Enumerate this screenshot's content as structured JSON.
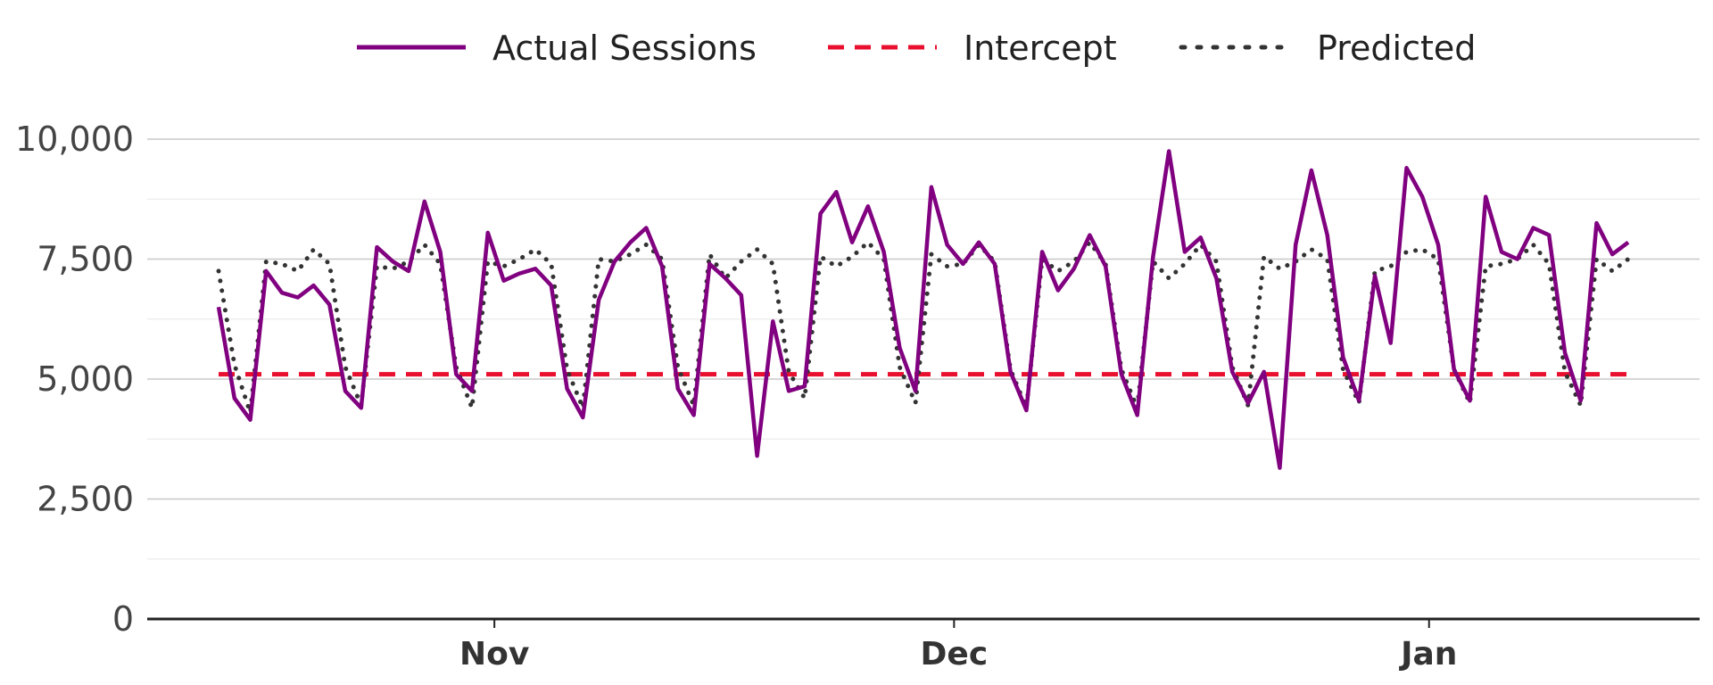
{
  "chart_data": {
    "type": "line",
    "x_start": "2023-10-14",
    "x_end": "2024-01-14",
    "ylim": [
      0,
      10000
    ],
    "y_ticks": [
      0,
      2500,
      5000,
      7500,
      10000
    ],
    "y_tick_labels": [
      "0",
      "2,500",
      "5,000",
      "7,500",
      "10,000"
    ],
    "x_ticks": [
      {
        "date": "2023-11-01",
        "label": "Nov"
      },
      {
        "date": "2023-12-01",
        "label": "Dec"
      },
      {
        "date": "2024-01-01",
        "label": "Jan"
      }
    ],
    "grid": true,
    "legend_position": "top",
    "series": [
      {
        "name": "Actual Sessions",
        "style": "solid",
        "color": "#800080",
        "values": [
          6500,
          4600,
          4150,
          7250,
          6800,
          6700,
          6950,
          6550,
          4750,
          4400,
          7750,
          7450,
          7250,
          8700,
          7650,
          5100,
          4750,
          8050,
          7050,
          7200,
          7300,
          6950,
          4800,
          4200,
          6650,
          7450,
          7850,
          8150,
          7350,
          4800,
          4250,
          7400,
          7100,
          6750,
          3400,
          6200,
          4750,
          4850,
          8450,
          8900,
          7850,
          8600,
          7650,
          5650,
          4750,
          9000,
          7800,
          7400,
          7850,
          7400,
          5150,
          4350,
          7650,
          6850,
          7300,
          8000,
          7350,
          5100,
          4250,
          7550,
          9750,
          7650,
          7950,
          7100,
          5150,
          4500,
          5150,
          3150,
          7800,
          9350,
          8000,
          5450,
          4550,
          7150,
          5750,
          9400,
          8800,
          7800,
          5200,
          4550,
          8800,
          7650,
          7500,
          8150,
          8000,
          5550,
          4550,
          8250,
          7600,
          7850
        ]
      },
      {
        "name": "Intercept",
        "style": "dashed",
        "color": "#e8102e",
        "constant": 5100
      },
      {
        "name": "Predicted",
        "style": "dotted",
        "color": "#333333",
        "values": [
          7250,
          5300,
          4300,
          7450,
          7400,
          7250,
          7700,
          7400,
          5250,
          4450,
          7350,
          7300,
          7450,
          7800,
          7400,
          5250,
          4400,
          7450,
          7350,
          7500,
          7700,
          7400,
          5200,
          4400,
          7500,
          7450,
          7600,
          7800,
          7500,
          5250,
          4450,
          7600,
          7100,
          7450,
          7700,
          7400,
          5150,
          4600,
          7550,
          7350,
          7550,
          7850,
          7500,
          5250,
          4500,
          7600,
          7350,
          7400,
          7800,
          7450,
          5200,
          4400,
          7500,
          7250,
          7450,
          7850,
          7400,
          5200,
          4400,
          7450,
          7100,
          7400,
          7800,
          7450,
          5250,
          4450,
          7550,
          7300,
          7450,
          7700,
          7500,
          5200,
          4500,
          7250,
          7350,
          7650,
          7700,
          7500,
          5200,
          4500,
          7350,
          7400,
          7500,
          7800,
          7400,
          5150,
          4450,
          7500,
          7250,
          7500
        ]
      }
    ]
  }
}
